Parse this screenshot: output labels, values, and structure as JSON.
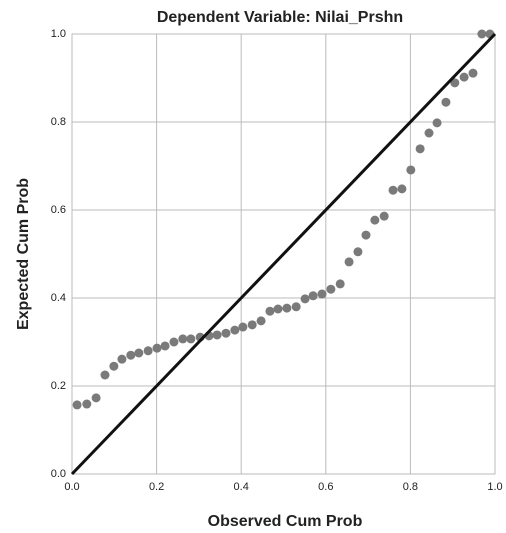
{
  "chart_data": {
    "type": "scatter",
    "title": "Dependent Variable: Nilai_Prshn",
    "x_label": "Observed Cum Prob",
    "y_label": "Expected Cum Prob",
    "color": "#7a7a7a",
    "grid": true,
    "xlim": [
      0,
      1
    ],
    "ylim": [
      0,
      1
    ],
    "xticks": [
      {
        "value": 0,
        "label": "0.0"
      },
      0.2,
      0.4,
      0.6,
      0.8,
      {
        "value": 1,
        "label": "1.0"
      }
    ],
    "yticks": [
      {
        "value": 0,
        "label": "0.0"
      },
      0.2,
      0.4,
      0.6,
      0.8,
      {
        "value": 1,
        "label": "1.0"
      }
    ],
    "x": [
      0.012,
      0.035,
      0.057,
      0.078,
      0.099,
      0.118,
      0.139,
      0.158,
      0.18,
      0.201,
      0.22,
      0.241,
      0.262,
      0.281,
      0.303,
      0.324,
      0.343,
      0.364,
      0.385,
      0.404,
      0.426,
      0.447,
      0.468,
      0.487,
      0.508,
      0.53,
      0.551,
      0.57,
      0.591,
      0.612,
      0.634,
      0.655,
      0.676,
      0.695,
      0.716,
      0.738,
      0.759,
      0.78,
      0.801,
      0.823,
      0.844,
      0.863,
      0.884,
      0.905,
      0.927,
      0.948,
      0.969,
      0.988
    ],
    "values": [
      0.157,
      0.159,
      0.173,
      0.225,
      0.245,
      0.261,
      0.27,
      0.275,
      0.28,
      0.286,
      0.291,
      0.3,
      0.307,
      0.307,
      0.311,
      0.314,
      0.316,
      0.32,
      0.327,
      0.334,
      0.339,
      0.348,
      0.37,
      0.375,
      0.377,
      0.38,
      0.398,
      0.405,
      0.409,
      0.42,
      0.432,
      0.482,
      0.505,
      0.543,
      0.577,
      0.586,
      0.645,
      0.648,
      0.691,
      0.739,
      0.775,
      0.798,
      0.845,
      0.889,
      0.902,
      0.911,
      1.0,
      1.0
    ]
  }
}
